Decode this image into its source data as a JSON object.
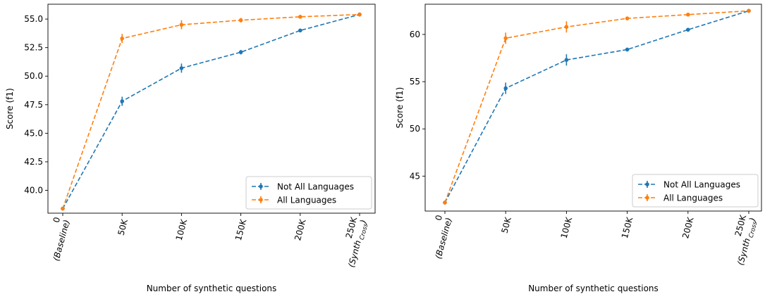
{
  "chart_data": [
    {
      "type": "line",
      "xlabel": "Number of synthetic questions",
      "ylabel": "Score (f1)",
      "categories": [
        {
          "main": "0",
          "sub": "(Baseline)",
          "subscript": ""
        },
        {
          "main": "50K",
          "sub": "",
          "subscript": ""
        },
        {
          "main": "100K",
          "sub": "",
          "subscript": ""
        },
        {
          "main": "150K",
          "sub": "",
          "subscript": ""
        },
        {
          "main": "200K",
          "sub": "",
          "subscript": ""
        },
        {
          "main": "250K",
          "sub": "(Synth",
          "subscript": "Cross",
          "sub_close": ")"
        }
      ],
      "ylim": [
        38.0,
        56.3
      ],
      "yticks": [
        40.0,
        42.5,
        45.0,
        47.5,
        50.0,
        52.5,
        55.0
      ],
      "ytick_labels": [
        "40.0",
        "42.5",
        "45.0",
        "47.5",
        "50.0",
        "52.5",
        "55.0"
      ],
      "grid": false,
      "legend": "lower-right",
      "series": [
        {
          "name": "Not All Languages",
          "color": "#1f77b4",
          "values": [
            38.4,
            47.8,
            50.7,
            52.1,
            54.0,
            55.4
          ],
          "errors": [
            0.1,
            0.4,
            0.4,
            0.2,
            0.1,
            0.1
          ]
        },
        {
          "name": "All Languages",
          "color": "#ff7f0e",
          "values": [
            38.4,
            53.3,
            54.5,
            54.9,
            55.2,
            55.4
          ],
          "errors": [
            0.1,
            0.4,
            0.4,
            0.2,
            0.1,
            0.1
          ]
        }
      ]
    },
    {
      "type": "line",
      "xlabel": "Number of synthetic questions",
      "ylabel": "Score (f1)",
      "categories": [
        {
          "main": "0",
          "sub": "(Baseline)",
          "subscript": ""
        },
        {
          "main": "50K",
          "sub": "",
          "subscript": ""
        },
        {
          "main": "100K",
          "sub": "",
          "subscript": ""
        },
        {
          "main": "150K",
          "sub": "",
          "subscript": ""
        },
        {
          "main": "200K",
          "sub": "",
          "subscript": ""
        },
        {
          "main": "250K",
          "sub": "(Synth",
          "subscript": "Cross",
          "sub_close": ")"
        }
      ],
      "ylim": [
        41.3,
        63.2
      ],
      "yticks": [
        45,
        50,
        55,
        60
      ],
      "ytick_labels": [
        "45",
        "50",
        "55",
        "60"
      ],
      "grid": false,
      "legend": "lower-right",
      "series": [
        {
          "name": "Not All Languages",
          "color": "#1f77b4",
          "values": [
            42.2,
            54.3,
            57.3,
            58.4,
            60.5,
            62.5
          ],
          "errors": [
            0.2,
            0.6,
            0.6,
            0.2,
            0.2,
            0.2
          ]
        },
        {
          "name": "All Languages",
          "color": "#ff7f0e",
          "values": [
            42.2,
            59.6,
            60.8,
            61.7,
            62.1,
            62.5
          ],
          "errors": [
            0.2,
            0.6,
            0.6,
            0.2,
            0.2,
            0.2
          ]
        }
      ]
    }
  ]
}
